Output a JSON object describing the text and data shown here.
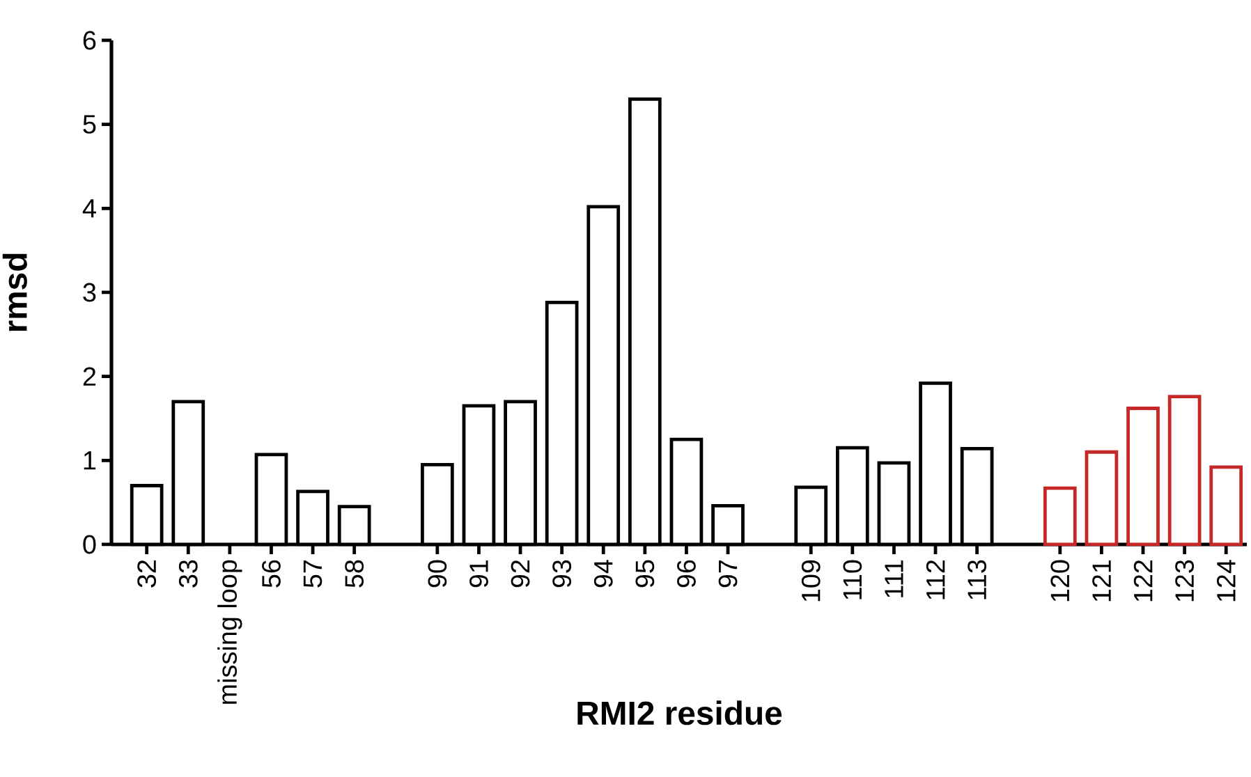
{
  "chart_data": {
    "type": "bar",
    "xlabel": "RMI2 residue",
    "ylabel": "rmsd",
    "categories": [
      "32",
      "33",
      "missing loop",
      "56",
      "57",
      "58",
      null,
      "90",
      "91",
      "92",
      "93",
      "94",
      "95",
      "96",
      "97",
      null,
      "109",
      "110",
      "111",
      "112",
      "113",
      null,
      "120",
      "121",
      "122",
      "123",
      "124"
    ],
    "values": [
      0.7,
      1.7,
      null,
      1.07,
      0.63,
      0.45,
      null,
      0.95,
      1.65,
      1.7,
      2.88,
      4.02,
      5.3,
      1.25,
      0.46,
      null,
      0.68,
      1.15,
      0.97,
      1.92,
      1.14,
      null,
      0.67,
      1.1,
      1.62,
      1.76,
      0.92
    ],
    "colors": [
      "#000000",
      "#000000",
      "#000000",
      "#000000",
      "#000000",
      "#000000",
      "#000000",
      "#000000",
      "#000000",
      "#000000",
      "#000000",
      "#000000",
      "#000000",
      "#000000",
      "#000000",
      "#000000",
      "#000000",
      "#000000",
      "#000000",
      "#000000",
      "#000000",
      "#000000",
      "#c62828",
      "#c62828",
      "#c62828",
      "#c62828",
      "#c62828"
    ],
    "ylim": [
      0,
      6
    ],
    "yticks": [
      0,
      1,
      2,
      3,
      4,
      5,
      6
    ]
  }
}
